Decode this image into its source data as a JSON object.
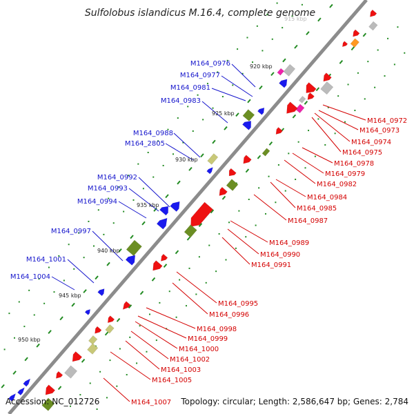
{
  "title": "Sulfolobus islandicus M.16.4, complete genome",
  "footer": {
    "accession": "Accession: NC_012726",
    "summary": "Topology: circular; Length: 2,586,647 bp; Genes: 2,784"
  },
  "colors": {
    "backbone": "#8c8c8c",
    "left_label": "#1414cc",
    "right_label": "#d40000",
    "cds_blue": "#1a1aee",
    "cds_red": "#ee1111",
    "olive": "#6b8e23",
    "khaki": "#c8c878",
    "gray": "#bbbbbb",
    "magenta": "#ee22aa",
    "orange": "#ff9922",
    "tick": "#228b22"
  },
  "scale_labels": [
    "915 kbp",
    "920 kbp",
    "925 kbp",
    "930 kbp",
    "935 kbp",
    "940 kbp",
    "945 kbp",
    "950 kbp"
  ],
  "left_genes": [
    "M164_0976",
    "M164_0977",
    "M164_0981",
    "M164_0983",
    "M164_0988",
    "M164_2805",
    "M164_0992",
    "M164_0993",
    "M164_0994",
    "M164_0997",
    "M164_1001",
    "M164_1004"
  ],
  "right_genes": [
    "M164_0972",
    "M164_0973",
    "M164_0974",
    "M164_0975",
    "M164_0978",
    "M164_0979",
    "M164_0982",
    "M164_0984",
    "M164_0985",
    "M164_0987",
    "M164_0989",
    "M164_0990",
    "M164_0991",
    "M164_0995",
    "M164_0996",
    "M164_0998",
    "M164_0999",
    "M164_1000",
    "M164_1002",
    "M164_1003",
    "M164_1005",
    "M164_1007"
  ]
}
